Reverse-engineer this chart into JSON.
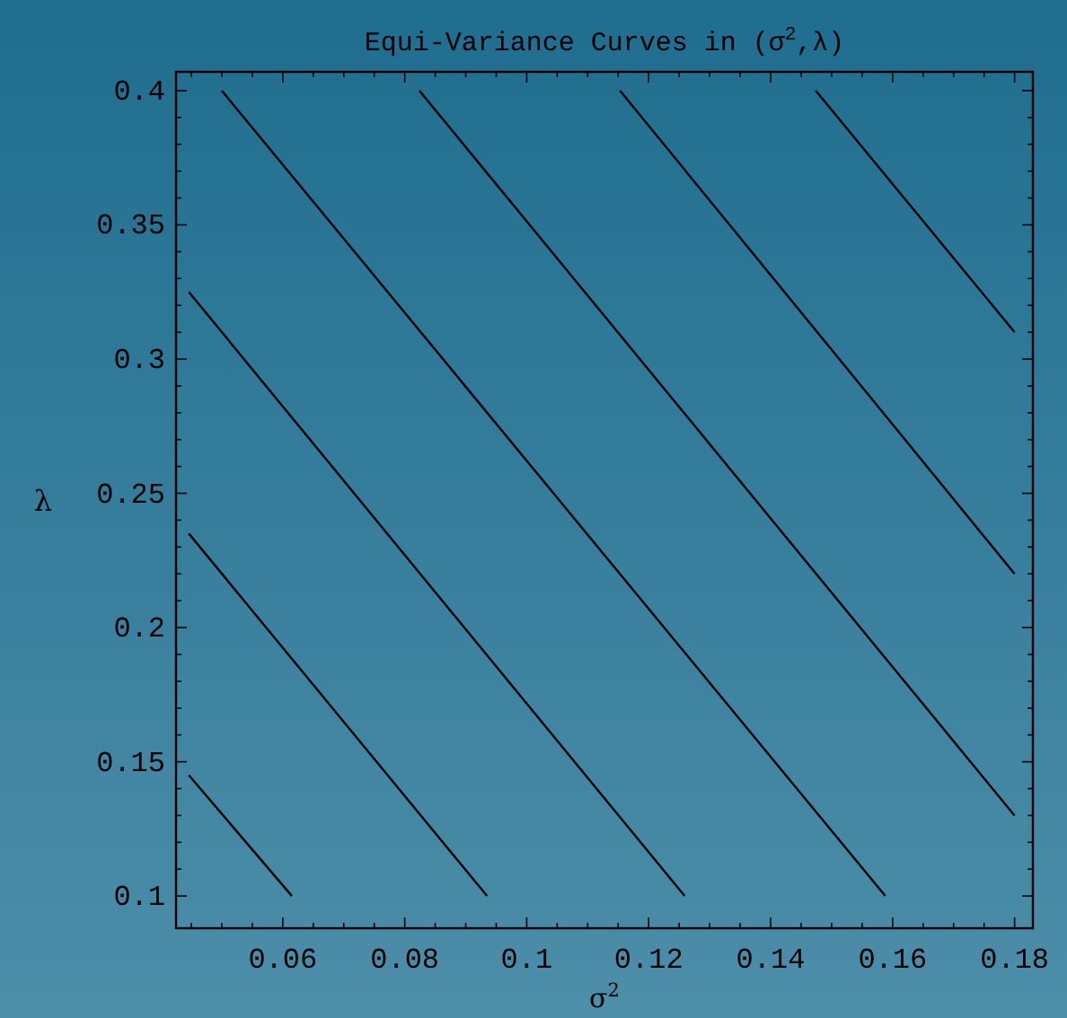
{
  "chart_data": {
    "type": "line",
    "title": "Equi-Variance Curves in (σ$^{2}$,λ)",
    "xlabel": "σ$^{2}$",
    "ylabel": "λ",
    "xlim": [
      0.0425,
      0.183
    ],
    "ylim": [
      0.088,
      0.407
    ],
    "marker": "none",
    "line_style": "solid",
    "grid": false,
    "xticks": [
      {
        "value": 0.045,
        "label": null
      },
      {
        "value": 0.05,
        "label": null
      },
      {
        "value": 0.055,
        "label": null
      },
      0.06,
      {
        "value": 0.065,
        "label": null
      },
      {
        "value": 0.07,
        "label": null
      },
      {
        "value": 0.075,
        "label": null
      },
      0.08,
      {
        "value": 0.085,
        "label": null
      },
      {
        "value": 0.09,
        "label": null
      },
      {
        "value": 0.095,
        "label": null
      },
      {
        "value": 0.1,
        "label": "0.1"
      },
      {
        "value": 0.105,
        "label": null
      },
      {
        "value": 0.11,
        "label": null
      },
      {
        "value": 0.115,
        "label": null
      },
      0.12,
      {
        "value": 0.125,
        "label": null
      },
      {
        "value": 0.13,
        "label": null
      },
      {
        "value": 0.135,
        "label": null
      },
      0.14,
      {
        "value": 0.145,
        "label": null
      },
      {
        "value": 0.15,
        "label": null
      },
      {
        "value": 0.155,
        "label": null
      },
      0.16,
      {
        "value": 0.165,
        "label": null
      },
      {
        "value": 0.17,
        "label": null
      },
      {
        "value": 0.175,
        "label": null
      },
      0.18
    ],
    "yticks": [
      {
        "value": 0.1,
        "label": "0.1"
      },
      {
        "value": 0.11,
        "label": null
      },
      {
        "value": 0.12,
        "label": null
      },
      {
        "value": 0.13,
        "label": null
      },
      {
        "value": 0.14,
        "label": null
      },
      0.15,
      {
        "value": 0.16,
        "label": null
      },
      {
        "value": 0.17,
        "label": null
      },
      {
        "value": 0.18,
        "label": null
      },
      {
        "value": 0.19,
        "label": null
      },
      {
        "value": 0.2,
        "label": "0.2"
      },
      {
        "value": 0.21,
        "label": null
      },
      {
        "value": 0.22,
        "label": null
      },
      {
        "value": 0.23,
        "label": null
      },
      {
        "value": 0.24,
        "label": null
      },
      0.25,
      {
        "value": 0.26,
        "label": null
      },
      {
        "value": 0.27,
        "label": null
      },
      {
        "value": 0.28,
        "label": null
      },
      {
        "value": 0.29,
        "label": null
      },
      {
        "value": 0.3,
        "label": "0.3"
      },
      {
        "value": 0.31,
        "label": null
      },
      {
        "value": 0.32,
        "label": null
      },
      {
        "value": 0.33,
        "label": null
      },
      {
        "value": 0.34,
        "label": null
      },
      0.35,
      {
        "value": 0.36,
        "label": null
      },
      {
        "value": 0.37,
        "label": null
      },
      {
        "value": 0.38,
        "label": null
      },
      {
        "value": 0.39,
        "label": null
      },
      {
        "value": 0.4,
        "label": "0.4"
      }
    ],
    "series": [
      {
        "color": "#000000",
        "x": [
          0.0446,
          0.0615
        ],
        "values": [
          0.145,
          0.1
        ]
      },
      {
        "color": "#000000",
        "x": [
          0.0446,
          0.0935
        ],
        "values": [
          0.235,
          0.1
        ]
      },
      {
        "color": "#000000",
        "x": [
          0.0446,
          0.1259
        ],
        "values": [
          0.325,
          0.1
        ]
      },
      {
        "color": "#000000",
        "x": [
          0.05,
          0.1588
        ],
        "values": [
          0.4,
          0.1
        ]
      },
      {
        "color": "#000000",
        "x": [
          0.0824,
          0.18
        ],
        "values": [
          0.4,
          0.13
        ]
      },
      {
        "color": "#000000",
        "x": [
          0.1153,
          0.18
        ],
        "values": [
          0.4,
          0.22
        ]
      },
      {
        "color": "#000000",
        "x": [
          0.1474,
          0.18
        ],
        "values": [
          0.4,
          0.31
        ]
      }
    ]
  }
}
